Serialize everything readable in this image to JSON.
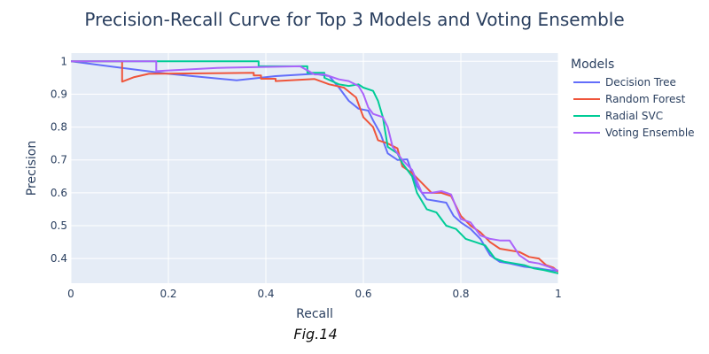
{
  "chart_data": {
    "type": "line",
    "title": "Precision-Recall Curve for Top 3 Models and Voting Ensemble",
    "xlabel": "Recall",
    "ylabel": "Precision",
    "xlim": [
      0,
      1
    ],
    "ylim": [
      0.325,
      1.025
    ],
    "x_ticks": [
      "0",
      "0.2",
      "0.4",
      "0.6",
      "0.8",
      "1"
    ],
    "y_ticks": [
      "0.4",
      "0.5",
      "0.6",
      "0.7",
      "0.8",
      "0.9",
      "1"
    ],
    "x_tick_values": [
      0,
      0.2,
      0.4,
      0.6,
      0.8,
      1
    ],
    "y_tick_values": [
      0.4,
      0.5,
      0.6,
      0.7,
      0.8,
      0.9,
      1
    ],
    "grid": true,
    "legend": {
      "title": "Models",
      "placement": "right"
    },
    "series": [
      {
        "name": "Decision Tree",
        "color": "#636efa",
        "points": [
          [
            0,
            1.0
          ],
          [
            0.2,
            0.962
          ],
          [
            0.34,
            0.942
          ],
          [
            0.42,
            0.955
          ],
          [
            0.5,
            0.962
          ],
          [
            0.53,
            0.955
          ],
          [
            0.55,
            0.92
          ],
          [
            0.57,
            0.88
          ],
          [
            0.59,
            0.856
          ],
          [
            0.61,
            0.85
          ],
          [
            0.62,
            0.82
          ],
          [
            0.635,
            0.78
          ],
          [
            0.65,
            0.72
          ],
          [
            0.67,
            0.7
          ],
          [
            0.69,
            0.702
          ],
          [
            0.71,
            0.62
          ],
          [
            0.73,
            0.58
          ],
          [
            0.75,
            0.575
          ],
          [
            0.77,
            0.57
          ],
          [
            0.785,
            0.53
          ],
          [
            0.8,
            0.51
          ],
          [
            0.82,
            0.49
          ],
          [
            0.84,
            0.46
          ],
          [
            0.86,
            0.41
          ],
          [
            0.88,
            0.39
          ],
          [
            0.9,
            0.385
          ],
          [
            0.93,
            0.375
          ],
          [
            0.96,
            0.37
          ],
          [
            0.98,
            0.365
          ],
          [
            1.0,
            0.362
          ]
        ]
      },
      {
        "name": "Random Forest",
        "color": "#ef553b",
        "points": [
          [
            0,
            1.0
          ],
          [
            0.105,
            1.0
          ],
          [
            0.105,
            0.938
          ],
          [
            0.13,
            0.952
          ],
          [
            0.16,
            0.962
          ],
          [
            0.375,
            0.965
          ],
          [
            0.375,
            0.957
          ],
          [
            0.39,
            0.957
          ],
          [
            0.39,
            0.947
          ],
          [
            0.42,
            0.947
          ],
          [
            0.42,
            0.94
          ],
          [
            0.5,
            0.946
          ],
          [
            0.53,
            0.93
          ],
          [
            0.56,
            0.92
          ],
          [
            0.585,
            0.89
          ],
          [
            0.6,
            0.83
          ],
          [
            0.62,
            0.8
          ],
          [
            0.63,
            0.76
          ],
          [
            0.65,
            0.75
          ],
          [
            0.67,
            0.735
          ],
          [
            0.68,
            0.68
          ],
          [
            0.7,
            0.66
          ],
          [
            0.72,
            0.63
          ],
          [
            0.74,
            0.6
          ],
          [
            0.76,
            0.6
          ],
          [
            0.78,
            0.59
          ],
          [
            0.8,
            0.53
          ],
          [
            0.82,
            0.5
          ],
          [
            0.84,
            0.48
          ],
          [
            0.86,
            0.45
          ],
          [
            0.88,
            0.43
          ],
          [
            0.9,
            0.425
          ],
          [
            0.92,
            0.42
          ],
          [
            0.94,
            0.405
          ],
          [
            0.96,
            0.4
          ],
          [
            0.975,
            0.38
          ],
          [
            0.99,
            0.372
          ],
          [
            1.0,
            0.36
          ]
        ]
      },
      {
        "name": "Radial SVC",
        "color": "#00cc96",
        "points": [
          [
            0,
            1.0
          ],
          [
            0.385,
            1.0
          ],
          [
            0.385,
            0.985
          ],
          [
            0.46,
            0.985
          ],
          [
            0.485,
            0.985
          ],
          [
            0.485,
            0.965
          ],
          [
            0.52,
            0.965
          ],
          [
            0.52,
            0.95
          ],
          [
            0.55,
            0.93
          ],
          [
            0.57,
            0.925
          ],
          [
            0.59,
            0.93
          ],
          [
            0.6,
            0.92
          ],
          [
            0.62,
            0.91
          ],
          [
            0.63,
            0.88
          ],
          [
            0.64,
            0.83
          ],
          [
            0.65,
            0.74
          ],
          [
            0.67,
            0.72
          ],
          [
            0.68,
            0.69
          ],
          [
            0.7,
            0.65
          ],
          [
            0.71,
            0.6
          ],
          [
            0.73,
            0.55
          ],
          [
            0.75,
            0.54
          ],
          [
            0.77,
            0.5
          ],
          [
            0.79,
            0.49
          ],
          [
            0.81,
            0.46
          ],
          [
            0.83,
            0.45
          ],
          [
            0.85,
            0.44
          ],
          [
            0.87,
            0.4
          ],
          [
            0.89,
            0.39
          ],
          [
            0.91,
            0.385
          ],
          [
            0.93,
            0.38
          ],
          [
            0.95,
            0.37
          ],
          [
            0.97,
            0.365
          ],
          [
            1.0,
            0.355
          ]
        ]
      },
      {
        "name": "Voting Ensemble",
        "color": "#ab63fa",
        "points": [
          [
            0,
            1.0
          ],
          [
            0.175,
            1.0
          ],
          [
            0.175,
            0.97
          ],
          [
            0.3,
            0.98
          ],
          [
            0.47,
            0.985
          ],
          [
            0.5,
            0.96
          ],
          [
            0.52,
            0.96
          ],
          [
            0.55,
            0.945
          ],
          [
            0.57,
            0.94
          ],
          [
            0.59,
            0.925
          ],
          [
            0.6,
            0.9
          ],
          [
            0.61,
            0.86
          ],
          [
            0.62,
            0.84
          ],
          [
            0.64,
            0.83
          ],
          [
            0.65,
            0.8
          ],
          [
            0.66,
            0.74
          ],
          [
            0.68,
            0.7
          ],
          [
            0.7,
            0.67
          ],
          [
            0.72,
            0.6
          ],
          [
            0.74,
            0.6
          ],
          [
            0.76,
            0.605
          ],
          [
            0.78,
            0.595
          ],
          [
            0.8,
            0.52
          ],
          [
            0.82,
            0.51
          ],
          [
            0.84,
            0.47
          ],
          [
            0.86,
            0.46
          ],
          [
            0.88,
            0.455
          ],
          [
            0.9,
            0.455
          ],
          [
            0.92,
            0.41
          ],
          [
            0.94,
            0.39
          ],
          [
            0.96,
            0.385
          ],
          [
            0.98,
            0.375
          ],
          [
            1.0,
            0.363
          ]
        ]
      }
    ]
  },
  "caption": "Fig.14"
}
